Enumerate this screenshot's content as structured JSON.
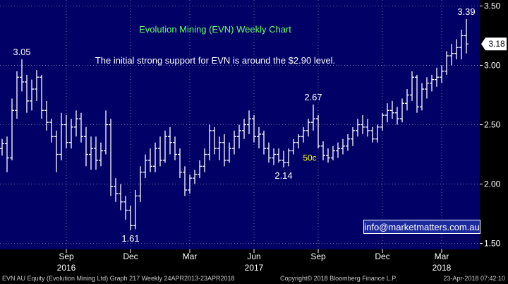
{
  "chart_data": {
    "type": "ohlc",
    "title": "Evolution Mining (EVN) Weekly Chart",
    "annotation": "The initial strong support for EVN is around the $2.90 level.",
    "ylim": [
      1.45,
      3.55
    ],
    "y_ticks": [
      "1.50",
      "2.00",
      "2.50",
      "3.00",
      "3.50"
    ],
    "x_ticks": [
      {
        "label": "Sep",
        "year": "2016",
        "index": 13
      },
      {
        "label": "Dec",
        "year": "",
        "index": 26
      },
      {
        "label": "Mar",
        "year": "",
        "index": 38
      },
      {
        "label": "Jun",
        "year": "2017",
        "index": 51
      },
      {
        "label": "Sep",
        "year": "",
        "index": 64
      },
      {
        "label": "Dec",
        "year": "",
        "index": 77
      },
      {
        "label": "Mar",
        "year": "2018",
        "index": 89
      }
    ],
    "last_price": "3.18",
    "point_labels": [
      {
        "text": "3.05",
        "index": 4,
        "value": 3.05,
        "pos": "above"
      },
      {
        "text": "1.61",
        "index": 26,
        "value": 1.61,
        "pos": "below"
      },
      {
        "text": "2.67",
        "index": 63,
        "value": 2.67,
        "pos": "above"
      },
      {
        "text": "2.14",
        "index": 57,
        "value": 2.14,
        "pos": "below"
      },
      {
        "text": "3.39",
        "index": 94,
        "value": 3.39,
        "pos": "above"
      }
    ],
    "callout": {
      "text": "50c",
      "index": 62,
      "value": 2.22
    },
    "colors": {
      "background": "#000066",
      "bars": "#ffffff",
      "grid": "#8a8ab0",
      "title": "#66ff66",
      "callout": "#ffff00",
      "text": "#ffffff"
    },
    "series": [
      {
        "name": "EVN",
        "ohlc": [
          [
            2.3,
            2.38,
            2.24,
            2.34
          ],
          [
            2.34,
            2.4,
            2.1,
            2.22
          ],
          [
            2.22,
            2.72,
            2.2,
            2.62
          ],
          [
            2.62,
            2.95,
            2.55,
            2.9
          ],
          [
            2.9,
            3.05,
            2.78,
            2.86
          ],
          [
            2.86,
            2.92,
            2.6,
            2.7
          ],
          [
            2.7,
            2.88,
            2.62,
            2.8
          ],
          [
            2.8,
            2.96,
            2.7,
            2.9
          ],
          [
            2.9,
            2.92,
            2.55,
            2.62
          ],
          [
            2.62,
            2.7,
            2.45,
            2.52
          ],
          [
            2.52,
            2.55,
            2.35,
            2.4
          ],
          [
            2.4,
            2.45,
            2.1,
            2.25
          ],
          [
            2.25,
            2.6,
            2.2,
            2.5
          ],
          [
            2.5,
            2.58,
            2.3,
            2.35
          ],
          [
            2.35,
            2.55,
            2.3,
            2.48
          ],
          [
            2.48,
            2.62,
            2.4,
            2.55
          ],
          [
            2.55,
            2.6,
            2.35,
            2.4
          ],
          [
            2.4,
            2.48,
            2.15,
            2.25
          ],
          [
            2.25,
            2.4,
            2.12,
            2.3
          ],
          [
            2.3,
            2.4,
            2.12,
            2.2
          ],
          [
            2.2,
            2.35,
            2.15,
            2.28
          ],
          [
            2.28,
            2.62,
            2.25,
            2.5
          ],
          [
            2.5,
            2.55,
            1.9,
            1.98
          ],
          [
            1.98,
            2.05,
            1.85,
            1.92
          ],
          [
            1.92,
            2.0,
            1.78,
            1.85
          ],
          [
            1.85,
            1.9,
            1.7,
            1.78
          ],
          [
            1.78,
            1.82,
            1.61,
            1.65
          ],
          [
            1.65,
            1.95,
            1.62,
            1.9
          ],
          [
            1.9,
            2.15,
            1.85,
            2.1
          ],
          [
            2.1,
            2.25,
            2.05,
            2.2
          ],
          [
            2.2,
            2.3,
            2.1,
            2.15
          ],
          [
            2.15,
            2.35,
            2.1,
            2.3
          ],
          [
            2.3,
            2.4,
            2.15,
            2.2
          ],
          [
            2.2,
            2.45,
            2.18,
            2.4
          ],
          [
            2.4,
            2.48,
            2.25,
            2.35
          ],
          [
            2.35,
            2.4,
            2.2,
            2.25
          ],
          [
            2.25,
            2.3,
            2.05,
            2.1
          ],
          [
            2.1,
            2.15,
            1.9,
            1.95
          ],
          [
            1.95,
            2.08,
            1.92,
            2.05
          ],
          [
            2.05,
            2.12,
            2.0,
            2.08
          ],
          [
            2.08,
            2.2,
            2.05,
            2.15
          ],
          [
            2.15,
            2.3,
            2.1,
            2.25
          ],
          [
            2.25,
            2.5,
            2.2,
            2.45
          ],
          [
            2.45,
            2.48,
            2.25,
            2.3
          ],
          [
            2.3,
            2.4,
            2.2,
            2.35
          ],
          [
            2.35,
            2.42,
            2.15,
            2.2
          ],
          [
            2.2,
            2.35,
            2.18,
            2.3
          ],
          [
            2.3,
            2.45,
            2.25,
            2.4
          ],
          [
            2.4,
            2.5,
            2.3,
            2.45
          ],
          [
            2.45,
            2.55,
            2.38,
            2.5
          ],
          [
            2.5,
            2.62,
            2.42,
            2.55
          ],
          [
            2.55,
            2.58,
            2.35,
            2.4
          ],
          [
            2.4,
            2.48,
            2.3,
            2.42
          ],
          [
            2.42,
            2.45,
            2.25,
            2.3
          ],
          [
            2.3,
            2.35,
            2.18,
            2.22
          ],
          [
            2.22,
            2.3,
            2.16,
            2.25
          ],
          [
            2.25,
            2.3,
            2.18,
            2.2
          ],
          [
            2.2,
            2.28,
            2.14,
            2.18
          ],
          [
            2.18,
            2.3,
            2.15,
            2.28
          ],
          [
            2.28,
            2.38,
            2.25,
            2.35
          ],
          [
            2.35,
            2.42,
            2.3,
            2.4
          ],
          [
            2.4,
            2.48,
            2.35,
            2.45
          ],
          [
            2.45,
            2.55,
            2.4,
            2.52
          ],
          [
            2.52,
            2.67,
            2.45,
            2.55
          ],
          [
            2.55,
            2.58,
            2.3,
            2.32
          ],
          [
            2.32,
            2.36,
            2.2,
            2.24
          ],
          [
            2.24,
            2.3,
            2.18,
            2.22
          ],
          [
            2.22,
            2.32,
            2.2,
            2.28
          ],
          [
            2.28,
            2.35,
            2.22,
            2.3
          ],
          [
            2.3,
            2.38,
            2.25,
            2.32
          ],
          [
            2.32,
            2.42,
            2.28,
            2.38
          ],
          [
            2.38,
            2.48,
            2.32,
            2.45
          ],
          [
            2.45,
            2.55,
            2.4,
            2.5
          ],
          [
            2.5,
            2.58,
            2.42,
            2.48
          ],
          [
            2.48,
            2.55,
            2.4,
            2.45
          ],
          [
            2.45,
            2.48,
            2.35,
            2.38
          ],
          [
            2.38,
            2.5,
            2.35,
            2.48
          ],
          [
            2.48,
            2.6,
            2.45,
            2.58
          ],
          [
            2.58,
            2.68,
            2.52,
            2.62
          ],
          [
            2.62,
            2.7,
            2.55,
            2.6
          ],
          [
            2.6,
            2.65,
            2.5,
            2.55
          ],
          [
            2.55,
            2.72,
            2.52,
            2.68
          ],
          [
            2.68,
            2.8,
            2.62,
            2.75
          ],
          [
            2.75,
            2.95,
            2.7,
            2.9
          ],
          [
            2.9,
            2.92,
            2.6,
            2.65
          ],
          [
            2.65,
            2.85,
            2.62,
            2.8
          ],
          [
            2.8,
            2.9,
            2.72,
            2.85
          ],
          [
            2.85,
            2.92,
            2.78,
            2.88
          ],
          [
            2.88,
            2.98,
            2.82,
            2.9
          ],
          [
            2.9,
            3.0,
            2.85,
            2.95
          ],
          [
            2.95,
            3.12,
            2.92,
            3.08
          ],
          [
            3.08,
            3.18,
            3.0,
            3.1
          ],
          [
            3.1,
            3.22,
            3.05,
            3.15
          ],
          [
            3.15,
            3.3,
            3.05,
            3.25
          ],
          [
            3.25,
            3.39,
            3.1,
            3.18
          ]
        ]
      }
    ]
  },
  "contact": "info@marketmatters.com.au",
  "footer": {
    "left": "EVN AU Equity (Evolution Mining Ltd) Graph 217  Weekly 24APR2013-23APR2018",
    "center": "Copyright© 2018 Bloomberg Finance L.P.",
    "right": "23-Apr-2018 07:42:10"
  }
}
